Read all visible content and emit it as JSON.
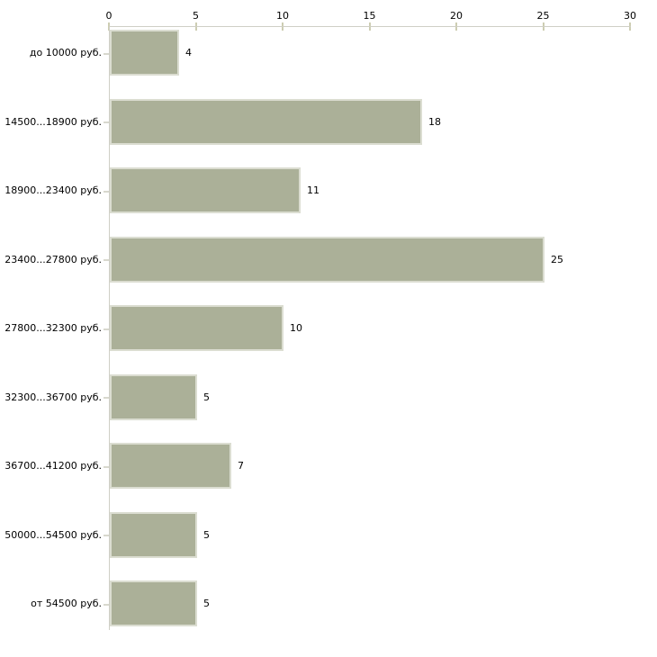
{
  "chart_data": {
    "type": "bar",
    "orientation": "horizontal",
    "title": "",
    "xlabel": "",
    "ylabel": "",
    "categories": [
      "до 10000 руб.",
      "14500...18900 руб.",
      "18900...23400 руб.",
      "23400...27800 руб.",
      "27800...32300 руб.",
      "32300...36700 руб.",
      "36700...41200 руб.",
      "50000...54500 руб.",
      "от 54500 руб."
    ],
    "values": [
      4,
      18,
      11,
      25,
      10,
      5,
      7,
      5,
      5
    ],
    "x_ticks": [
      0,
      5,
      10,
      15,
      20,
      25,
      30
    ],
    "xlim": [
      0,
      30
    ],
    "grid": false,
    "legend": "none",
    "value_labels_shown": true,
    "colors": {
      "bar_fill": "#abb098",
      "bar_border": "#dbddd1",
      "axis_line": "#cfcfc6",
      "x_tick_mark": "#cdcdb2",
      "y_tick_mark": "#d8d8ce",
      "text": "#000000",
      "background": "#ffffff"
    }
  }
}
